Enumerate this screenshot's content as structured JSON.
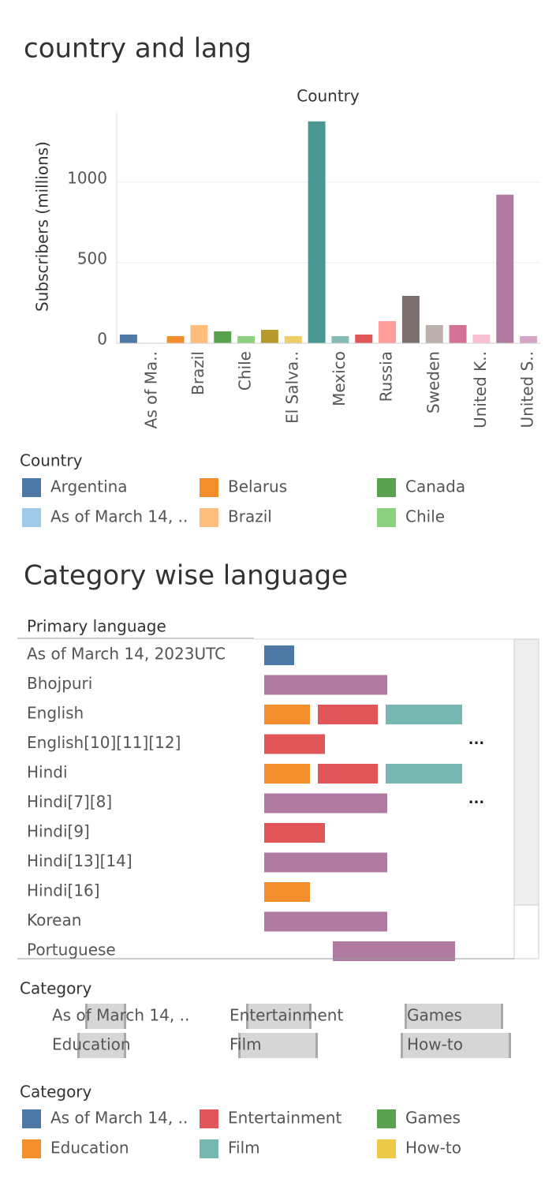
{
  "chart_data": [
    {
      "type": "bar",
      "title": "country and lang",
      "header": "Country",
      "y_label": "Subscribers (millions)",
      "categories": [
        null,
        "As of Ma..",
        null,
        "Brazil",
        null,
        "Chile",
        null,
        "El Salva..",
        null,
        "Mexico",
        null,
        "Russia",
        null,
        "Sweden",
        null,
        "United K..",
        null,
        "United S.."
      ],
      "values": [
        54,
        0,
        44,
        113,
        74,
        44,
        83,
        44,
        1377,
        44,
        54,
        137,
        294,
        113,
        113,
        54,
        922,
        44
      ],
      "colors": [
        "#4e79a7",
        "#a0cbe8",
        "#f28e2b",
        "#ffbe7d",
        "#59a14f",
        "#8cd17d",
        "#b6992d",
        "#f1ce63",
        "#499894",
        "#86bcb6",
        "#e15759",
        "#ff9d9a",
        "#79706e",
        "#bab0ac",
        "#d37295",
        "#fabfd2",
        "#b07aa1",
        "#d4a6c8"
      ],
      "ylim": [
        0,
        1430
      ],
      "yticks": [
        0,
        500,
        1000
      ],
      "grid": true,
      "legend": {
        "title": "Country",
        "items": [
          {
            "name": "Argentina",
            "color": "#4e79a7"
          },
          {
            "name": "Belarus",
            "color": "#f28e2b"
          },
          {
            "name": "Canada",
            "color": "#59a14f"
          },
          {
            "name": "As of March 14, ..",
            "color": "#a0cbe8"
          },
          {
            "name": "Brazil",
            "color": "#ffbe7d"
          },
          {
            "name": "Chile",
            "color": "#8cd17d"
          }
        ]
      }
    },
    {
      "type": "gantt",
      "title": "Category wise language",
      "row_header": "Primary language",
      "xlim": [
        0,
        35
      ],
      "rows": [
        {
          "label": "As of March 14, 2023UTC",
          "segments": [
            {
              "start": 0,
              "value": 3.8,
              "color": "#4e79a7"
            }
          ]
        },
        {
          "label": "Bhojpuri",
          "segments": [
            {
              "start": 0,
              "value": 15.6,
              "color": "#b07aa1"
            }
          ]
        },
        {
          "label": "English",
          "segments": [
            {
              "start": 0,
              "value": 5.8,
              "color": "#f28e2b"
            },
            {
              "start": 6.8,
              "value": 7.6,
              "color": "#e15759"
            },
            {
              "start": 15.4,
              "value": 9.7,
              "color": "#76b7b2"
            }
          ]
        },
        {
          "label": "English[10][11][12]",
          "segments": [
            {
              "start": 0,
              "value": 7.7,
              "color": "#e15759"
            }
          ],
          "more": "···"
        },
        {
          "label": "Hindi",
          "segments": [
            {
              "start": 0,
              "value": 5.8,
              "color": "#f28e2b"
            },
            {
              "start": 6.8,
              "value": 7.6,
              "color": "#e15759"
            },
            {
              "start": 15.4,
              "value": 9.7,
              "color": "#76b7b2"
            }
          ]
        },
        {
          "label": "Hindi[7][8]",
          "segments": [
            {
              "start": 0,
              "value": 15.6,
              "color": "#b07aa1"
            }
          ],
          "more": "···"
        },
        {
          "label": "Hindi[9]",
          "segments": [
            {
              "start": 0,
              "value": 7.7,
              "color": "#e15759"
            }
          ]
        },
        {
          "label": "Hindi[13][14]",
          "segments": [
            {
              "start": 0,
              "value": 15.6,
              "color": "#b07aa1"
            }
          ]
        },
        {
          "label": "Hindi[16]",
          "segments": [
            {
              "start": 0,
              "value": 5.8,
              "color": "#f28e2b"
            }
          ]
        },
        {
          "label": "Korean",
          "segments": [
            {
              "start": 0,
              "value": 15.6,
              "color": "#b07aa1"
            }
          ]
        },
        {
          "label": "Portuguese",
          "segments": [
            {
              "start": 8.7,
              "value": 15.5,
              "color": "#b07aa1"
            }
          ]
        }
      ],
      "filter": {
        "title": "Category",
        "items": [
          "As of March 14, ..",
          "Entertainment",
          "Games",
          "Education",
          "Film",
          "How-to"
        ]
      },
      "legend": {
        "title": "Category",
        "items": [
          {
            "name": "As of March 14, ..",
            "color": "#4e79a7"
          },
          {
            "name": "Entertainment",
            "color": "#e15759"
          },
          {
            "name": "Games",
            "color": "#59a14f"
          },
          {
            "name": "Education",
            "color": "#f28e2b"
          },
          {
            "name": "Film",
            "color": "#76b7b2"
          },
          {
            "name": "How-to",
            "color": "#edc948"
          }
        ]
      }
    }
  ]
}
